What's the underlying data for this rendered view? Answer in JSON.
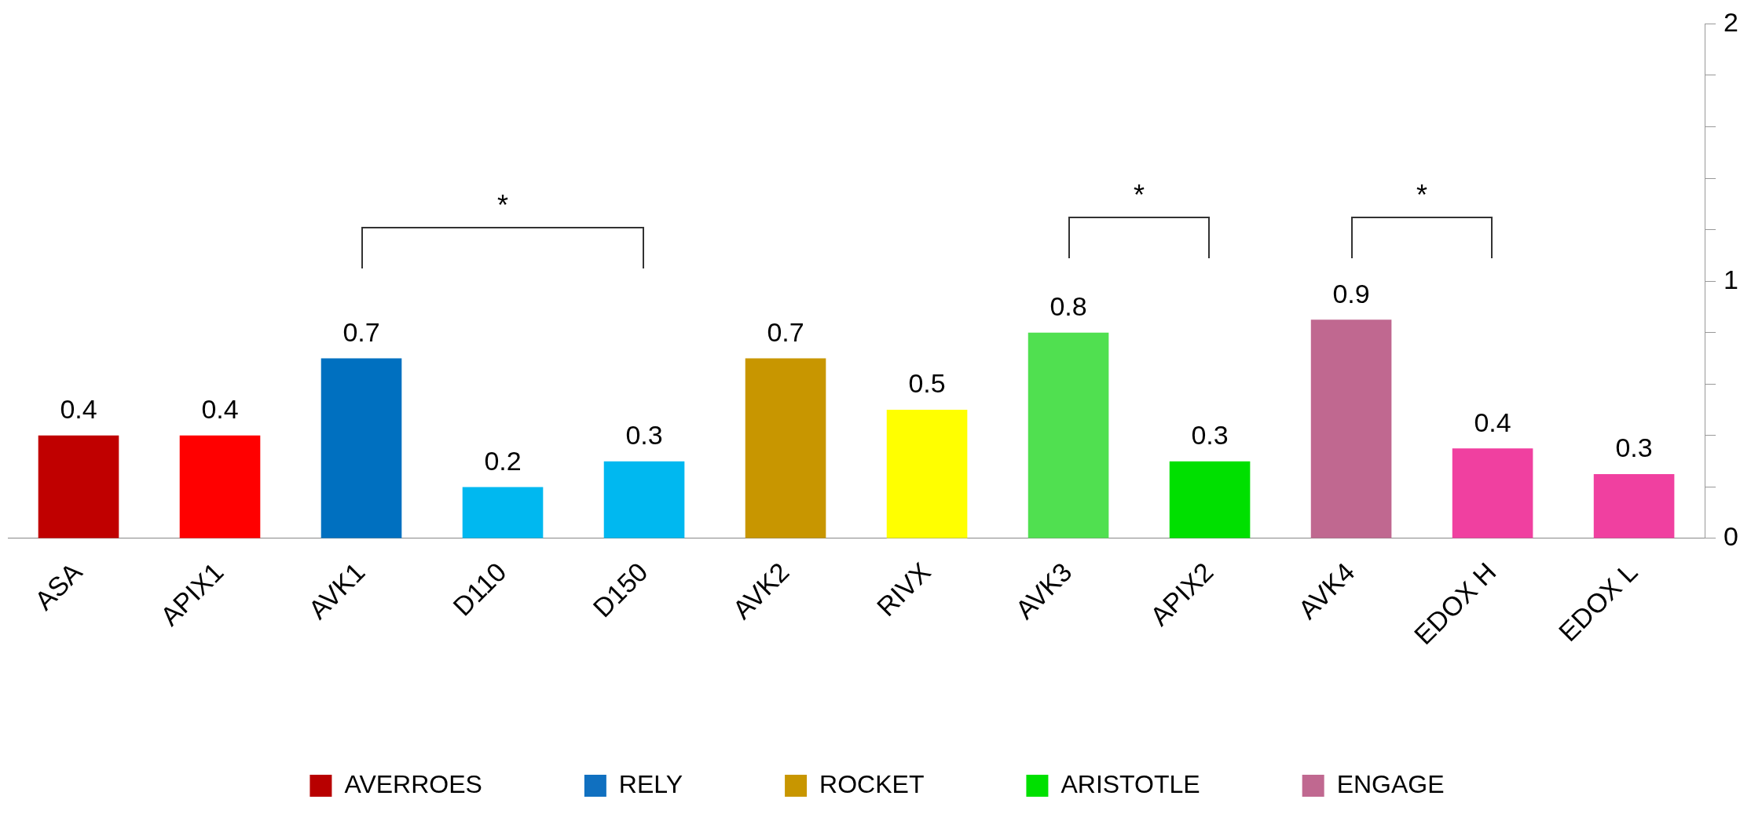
{
  "chart_data": {
    "type": "bar",
    "stacked": true,
    "categories": [
      "ASA",
      "APIX1",
      "AVK1",
      "D110",
      "D150",
      "AVK2",
      "RIVX",
      "AVK3",
      "APIX2",
      "AVK4",
      "EDOX H",
      "EDOX L"
    ],
    "series": [
      {
        "name": "AVERROES",
        "color": "#b80000",
        "colors": [
          "#c00000",
          "#ff0000",
          null,
          null,
          null,
          null,
          null,
          null,
          null,
          null,
          null,
          null
        ],
        "values": [
          0.4,
          0.4,
          null,
          null,
          null,
          null,
          null,
          null,
          null,
          null,
          null,
          null
        ],
        "value_labels": [
          "0.4",
          "0.4",
          null,
          null,
          null,
          null,
          null,
          null,
          null,
          null,
          null,
          null
        ]
      },
      {
        "name": "RELY",
        "color": "#1070c0",
        "colors": [
          null,
          null,
          "#0070c0",
          "#00b8f0",
          "#00b8f0",
          null,
          null,
          null,
          null,
          null,
          null,
          null
        ],
        "values": [
          null,
          null,
          0.7,
          0.2,
          0.3,
          null,
          null,
          null,
          null,
          null,
          null,
          null
        ],
        "value_labels": [
          null,
          null,
          "0.7",
          "0.2",
          "0.3",
          null,
          null,
          null,
          null,
          null,
          null,
          null
        ]
      },
      {
        "name": "ROCKET",
        "color": "#c89600",
        "colors": [
          null,
          null,
          null,
          null,
          null,
          "#c89600",
          "#ffff00",
          null,
          null,
          null,
          null,
          null
        ],
        "values": [
          null,
          null,
          null,
          null,
          null,
          0.7,
          0.5,
          null,
          null,
          null,
          null,
          null
        ],
        "value_labels": [
          null,
          null,
          null,
          null,
          null,
          "0.7",
          "0.5",
          null,
          null,
          null,
          null,
          null
        ]
      },
      {
        "name": "ARISTOTLE",
        "color": "#00e000",
        "colors": [
          null,
          null,
          null,
          null,
          null,
          null,
          null,
          "#50e050",
          "#00e000",
          null,
          null,
          null
        ],
        "values": [
          null,
          null,
          null,
          null,
          null,
          null,
          null,
          0.8,
          0.3,
          null,
          null,
          null
        ],
        "value_labels": [
          null,
          null,
          null,
          null,
          null,
          null,
          null,
          "0.8",
          "0.3",
          null,
          null,
          null
        ]
      },
      {
        "name": "ENGAGE",
        "color": "#c06890",
        "colors": [
          null,
          null,
          null,
          null,
          null,
          null,
          null,
          null,
          null,
          "#c06890",
          "#f040a0",
          "#f040a0"
        ],
        "values": [
          null,
          null,
          null,
          null,
          null,
          null,
          null,
          null,
          null,
          0.85,
          0.35,
          0.25
        ],
        "value_labels": [
          null,
          null,
          null,
          null,
          null,
          null,
          null,
          null,
          null,
          "0.9",
          "0.4",
          "0.3"
        ]
      }
    ],
    "ylim": [
      0,
      2
    ],
    "yticks": [
      0,
      {
        "value": 0.2,
        "label": null
      },
      {
        "value": 0.4,
        "label": null
      },
      {
        "value": 0.6,
        "label": null
      },
      {
        "value": 0.8,
        "label": null
      },
      1,
      {
        "value": 1.2,
        "label": null
      },
      {
        "value": 1.4,
        "label": null
      },
      {
        "value": 1.6,
        "label": null
      },
      {
        "value": 1.8,
        "label": null
      },
      2
    ],
    "grid": false,
    "legend": "bottom",
    "annotations": [
      "*",
      "*",
      "*"
    ]
  }
}
